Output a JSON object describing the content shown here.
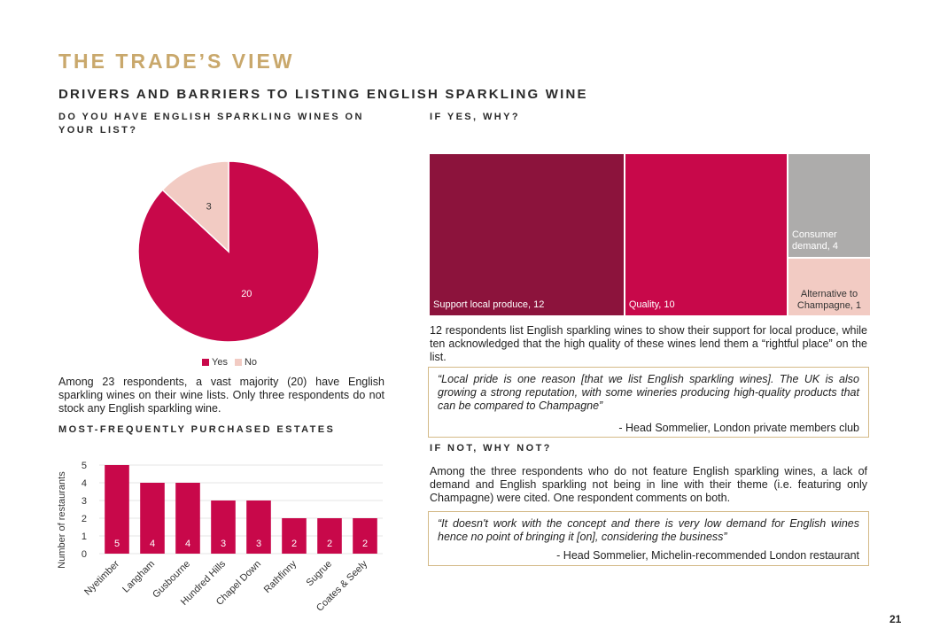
{
  "page": {
    "title": "THE TRADE’S VIEW",
    "section_title": "DRIVERS AND BARRIERS TO LISTING ENGLISH SPARKLING WINE",
    "page_number": "21"
  },
  "left": {
    "q1_label": "DO YOU HAVE ENGLISH SPARKLING WINES ON YOUR LIST?",
    "q1_paragraph": "Among 23 respondents, a vast majority (20) have English sparkling wines on their wine lists. Only three respondents do not stock any English sparkling wine.",
    "estates_label": "MOST-FREQUENTLY PURCHASED ESTATES"
  },
  "right": {
    "why_label": "IF YES, WHY?",
    "why_paragraph": "12 respondents list English sparkling wines to show their support for local produce, while ten acknowledged that the high quality of these wines lend them a “rightful place” on the list.",
    "quote1_text": "“Local pride is one reason [that we list English sparkling wines]. The UK is also growing a strong reputation, with some wineries producing high-quality products that can be compared to Champagne”",
    "quote1_attr": "- Head Sommelier, London private members club",
    "why_not_label": "IF NOT, WHY NOT?",
    "why_not_paragraph": "Among the three respondents who do not feature English sparkling wines, a lack of demand  and English sparkling not being in line with their theme (i.e. featuring only Champagne) were cited. One respondent comments on both.",
    "quote2_text": "“It doesn't work with the concept and there is very low demand for English wines hence no point of bringing it [on], considering the business”",
    "quote2_attr": "- Head Sommelier, Michelin-recommended London restaurant"
  },
  "chart_data": [
    {
      "type": "pie",
      "title": "",
      "categories": [
        "Yes",
        "No"
      ],
      "values": [
        20,
        3
      ],
      "colors": [
        "#c8084a",
        "#f2cbc3"
      ],
      "legend": "bottom"
    },
    {
      "type": "bar",
      "title": "",
      "xlabel": "",
      "ylabel": "Number of restaurants",
      "categories": [
        "Nyetimber",
        "Langham",
        "Gusbourne",
        "Hundred Hills",
        "Chapel Down",
        "Rathfinny",
        "Sugrue",
        "Coates & Seely"
      ],
      "values": [
        5,
        4,
        4,
        3,
        3,
        2,
        2,
        2
      ],
      "ylim": [
        0,
        5
      ],
      "yticks": [
        "0",
        "1",
        "2",
        "3",
        "4",
        "5"
      ],
      "grid": true,
      "color": "#c8084a"
    },
    {
      "type": "treemap",
      "title": "",
      "categories": [
        "Support local produce",
        "Quality",
        "Consumer demand",
        "Alternative to Champagne"
      ],
      "labels": [
        "Support local produce, 12",
        "Quality, 10",
        "Consumer demand, 4",
        "Alternative to Champagne, 1"
      ],
      "values": [
        12,
        10,
        4,
        1
      ],
      "colors": [
        "#8c133c",
        "#c8084a",
        "#adacab",
        "#f2cbc3"
      ]
    }
  ]
}
